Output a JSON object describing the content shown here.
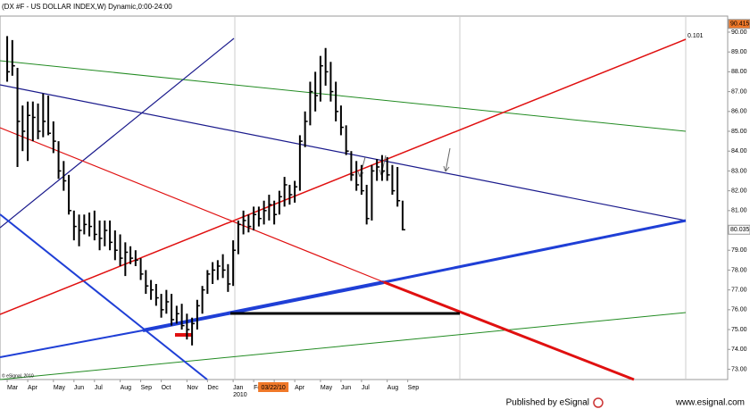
{
  "chart_data": {
    "type": "ohlc",
    "title": "(DX #F - US DOLLAR INDEX,W) Dynamic,0:00-24:00",
    "color": "#000000",
    "high": [
      89.8,
      89.6,
      88.2,
      86.3,
      86.5,
      86.5,
      86.4,
      86.9,
      86.8,
      85.5,
      84.5,
      83.5,
      82.8,
      81.0,
      80.8,
      80.8,
      80.9,
      81.0,
      80.5,
      80.5,
      80.5,
      80.0,
      79.8,
      79.4,
      79.2,
      79.0,
      78.6,
      78.0,
      77.5,
      77.3,
      76.8,
      77.0,
      76.8,
      76.2,
      76.3,
      75.8,
      75.6,
      76.5,
      77.2,
      78.0,
      78.4,
      78.5,
      78.8,
      78.3,
      79.5,
      80.5,
      81.0,
      80.8,
      81.2,
      81.2,
      81.5,
      81.8,
      81.5,
      82.0,
      82.7,
      82.3,
      82.5,
      84.8,
      86.0,
      87.5,
      88.0,
      88.8,
      89.2,
      88.5,
      87.5,
      86.3,
      85.3,
      84.0,
      83.5,
      83.3,
      82.3,
      83.3,
      83.6,
      83.8,
      83.7,
      83.3,
      83.2,
      81.5
    ],
    "low": [
      87.5,
      87.8,
      83.2,
      84.0,
      83.5,
      84.5,
      84.6,
      84.7,
      84.8,
      83.9,
      82.6,
      82.0,
      80.8,
      79.5,
      79.2,
      79.8,
      79.7,
      79.5,
      79.0,
      79.2,
      79.0,
      78.5,
      78.2,
      77.7,
      78.3,
      78.2,
      77.5,
      76.8,
      76.5,
      76.2,
      75.6,
      75.8,
      75.2,
      75.3,
      75.0,
      74.5,
      74.2,
      75.0,
      75.8,
      76.8,
      77.3,
      77.5,
      77.6,
      76.9,
      77.2,
      78.8,
      79.8,
      79.9,
      80.0,
      80.2,
      80.3,
      80.5,
      80.3,
      80.8,
      81.2,
      81.3,
      81.4,
      82.0,
      84.2,
      85.3,
      86.0,
      86.5,
      87.3,
      86.5,
      85.5,
      84.8,
      83.8,
      82.5,
      82.0,
      81.8,
      80.3,
      80.5,
      82.5,
      82.5,
      82.5,
      81.8,
      81.2,
      80.0
    ],
    "close": [
      88.0,
      88.3,
      85.5,
      85.0,
      85.8,
      85.7,
      85.0,
      85.5,
      84.9,
      84.5,
      83.0,
      82.5,
      81.0,
      80.2,
      80.0,
      80.3,
      80.2,
      79.8,
      79.6,
      80.0,
      79.4,
      79.0,
      78.6,
      78.9,
      78.6,
      78.5,
      77.8,
      77.2,
      77.0,
      76.6,
      76.0,
      76.4,
      75.5,
      75.8,
      75.2,
      75.0,
      75.3,
      76.2,
      77.0,
      77.8,
      78.0,
      78.2,
      78.0,
      77.3,
      79.0,
      80.3,
      80.5,
      80.2,
      80.8,
      80.6,
      81.0,
      81.3,
      80.8,
      81.7,
      82.3,
      81.8,
      82.2,
      84.5,
      85.5,
      87.0,
      86.8,
      88.3,
      88.0,
      87.0,
      86.0,
      85.2,
      84.0,
      82.8,
      82.3,
      82.0,
      80.6,
      83.0,
      83.2,
      83.0,
      82.8,
      82.0,
      81.5,
      80.035
    ],
    "xlim": [
      -1.4,
      140.3
    ],
    "xticks": [
      {
        "value": 0,
        "label": "Mar"
      },
      {
        "value": 4,
        "label": "Apr"
      },
      {
        "value": 9,
        "label": "May"
      },
      {
        "value": 13,
        "label": "Jun"
      },
      {
        "value": 17,
        "label": "Jul"
      },
      {
        "value": 22,
        "label": "Aug"
      },
      {
        "value": 26,
        "label": "Sep"
      },
      {
        "value": 30,
        "label": "Oct"
      },
      {
        "value": 35,
        "label": "Nov"
      },
      {
        "value": 39,
        "label": "Dec"
      },
      {
        "value": 44,
        "label": "Jan"
      },
      {
        "value": 48,
        "label": "Feb"
      },
      {
        "value": 52,
        "label": "Mar"
      },
      {
        "value": 56,
        "label": "Apr"
      },
      {
        "value": 61,
        "label": "May"
      },
      {
        "value": 65,
        "label": "Jun"
      },
      {
        "value": 69,
        "label": "Jul"
      },
      {
        "value": 74,
        "label": "Aug"
      },
      {
        "value": 78,
        "label": "Sep"
      }
    ],
    "year_label": "2010",
    "cursor_date": "03/22/10",
    "ylim": [
      72.48,
      90.81
    ],
    "yticks": [
      {
        "value": 73,
        "label": "73.00"
      },
      {
        "value": 74,
        "label": "74.00"
      },
      {
        "value": 75,
        "label": "75.00"
      },
      {
        "value": 76,
        "label": "76.00"
      },
      {
        "value": 77,
        "label": "77.00"
      },
      {
        "value": 78,
        "label": "78.00"
      },
      {
        "value": 79,
        "label": "79.00"
      },
      {
        "value": 80,
        "label": "80.00"
      },
      {
        "value": 81,
        "label": "81.00"
      },
      {
        "value": 82,
        "label": "82.00"
      },
      {
        "value": 83,
        "label": "83.00"
      },
      {
        "value": 84,
        "label": "84.00"
      },
      {
        "value": 85,
        "label": "85.00"
      },
      {
        "value": 86,
        "label": "86.00"
      },
      {
        "value": 87,
        "label": "87.00"
      },
      {
        "value": 88,
        "label": "88.00"
      },
      {
        "value": 89,
        "label": "89.00"
      },
      {
        "value": 90,
        "label": "90.00"
      }
    ],
    "last_price": {
      "value": 80.035,
      "label": "80.035"
    },
    "cursor_price": {
      "value": 90.415,
      "label": "90.415"
    },
    "fib_label": "0.101",
    "copyright": "© eSignal, 2010",
    "footer": {
      "publisher": "Published by eSignal",
      "url": "www.esignal.com"
    }
  }
}
